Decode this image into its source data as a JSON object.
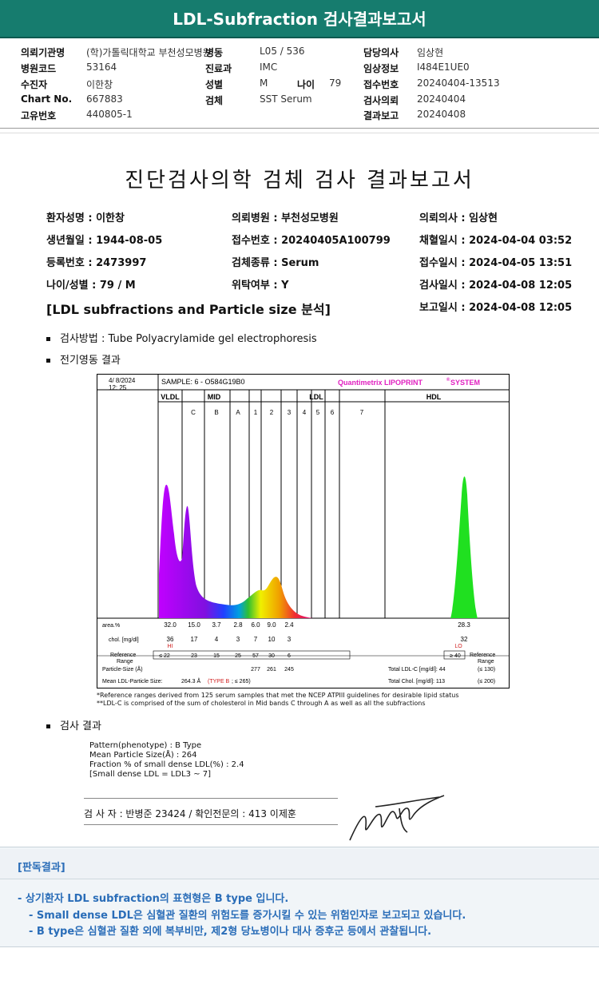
{
  "header": {
    "title": "LDL-Subfraction 검사결과보고서"
  },
  "info": [
    {
      "k": "의뢰기관명",
      "v": "(학)가톨릭대학교 부천성모병원"
    },
    {
      "k": "병동",
      "v": "L\u000405 / 536"
    },
    {
      "k": "담당의사",
      "v": "임상현"
    },
    {
      "k": "병원코드",
      "v": "53164"
    },
    {
      "k": "진료과",
      "v": "IMC"
    },
    {
      "k": "임상정보",
      "v": "I484E1UE0"
    },
    {
      "k": "수진자",
      "v": "이한창"
    },
    {
      "k": "성별",
      "v": "M"
    },
    {
      "k": "나이",
      "v": "79"
    },
    {
      "k": "접수번호",
      "v": "20240404-13513"
    },
    {
      "k": "Chart No.",
      "v": "667883"
    },
    {
      "k": "검체",
      "v": "SST Serum"
    },
    {
      "k": "검사의뢰",
      "v": "20240404"
    },
    {
      "k": "고유번호",
      "v": "440805-1"
    },
    {
      "k": "결과보고",
      "v": "20240408"
    }
  ],
  "doc": {
    "title": "진단검사의학 검체 검사 결과보고서",
    "fields": [
      "환자성명 : 이한창",
      "의뢰병원 : 부천성모병원",
      "의뢰의사 : 임상현",
      "생년월일 : 1944-08-05",
      "접수번호 : 20240405A100799",
      "채혈일시 : 2024-04-04 03:52",
      "등록번호 : 2473997",
      "검체종류 : Serum",
      "접수일시 : 2024-04-05 13:51",
      "나이/성별 : 79 / M",
      "위탁여부 : Y",
      "검사일시 : 2024-04-08 12:05",
      "보고일시 : 2024-04-08 12:05"
    ],
    "section": "[LDL subfractions and Particle size 분석]",
    "method": "검사방법 : Tube Polyacrylamide gel electrophoresis",
    "electro": "전기영동 결과",
    "result_head": "검사 결과"
  },
  "chart_data": {
    "type": "area",
    "date": "4/ 8/2024",
    "time": "12: 25",
    "sample": "SAMPLE:   6 - O584G19B0",
    "brand": "Quantimetrix LIPOPRINT",
    "brand_sys": "SYSTEM",
    "reg": "®",
    "bands": [
      "VLDL",
      "MID",
      "LDL",
      "HDL"
    ],
    "subbands": [
      "C",
      "B",
      "A",
      "1",
      "2",
      "3",
      "4",
      "5",
      "6",
      "7"
    ],
    "area_label": "area.%",
    "area": [
      "32.0",
      "15.0",
      "3.7",
      "2.8",
      "6.0",
      "9.0",
      "2.4",
      "28.3"
    ],
    "chol_label": "chol. [mg/dl]",
    "chol": [
      "36",
      "17",
      "4",
      "3",
      "7",
      "10",
      "3",
      "32"
    ],
    "hi": "HI",
    "lo": "LO",
    "ref_label1": "Reference",
    "ref_label2": "Range",
    "ref": [
      "≤ 22",
      "23",
      "15",
      "25",
      "57",
      "30",
      "6",
      "≥ 40"
    ],
    "psize_label": "Particle-Size (Å)",
    "psize": [
      "277",
      "261",
      "245"
    ],
    "mean_label": "Mean LDL-Particle Size:",
    "mean_val": "264.3 Å",
    "type_text": "(TYPE B",
    "type_tail": "; ≤ 265)",
    "total_ldl": "Total LDL-C [mg/dl]:  44",
    "total_ldl_ref": "(≤ 130)",
    "total_chol": "Total Chol. [mg/dl]:   113",
    "total_chol_ref": "(≤ 200)",
    "note1": "*Reference ranges derived from 125 serum samples that met the NCEP ATPIII guidelines for desirable lipid status",
    "note2": "**LDL-C is comprised of the sum of cholesterol in Mid bands C through A as well as all the subfractions"
  },
  "results": [
    "Pattern(phenotype) : B Type",
    "Mean Particle Size(Å) : 264",
    "Fraction % of small dense LDL(%) : 2.4",
    "[Small dense LDL = LDL3 ~ 7]"
  ],
  "sign": {
    "line": "검 사 자 : 반병준  23424  /  확인전문의 : 413  이제훈"
  },
  "footer": {
    "head": "[판독결과]",
    "l1": "- 상기환자 LDL subfraction의 표현형은 B type 입니다.",
    "l2": "-   Small dense LDL은 심혈관 질환의 위험도를 증가시킬 수 있는 위험인자로 보고되고 있습니다.",
    "l3": "-   B type은 심혈관 질환 외에 복부비만, 제2형 당뇨병이나 대사 증후군 등에서 관찰됩니다."
  },
  "colors": {
    "header": "#167c6e",
    "footer_text": "#2a6db8",
    "brand": "#e020c0",
    "type_b": "#d02020"
  }
}
